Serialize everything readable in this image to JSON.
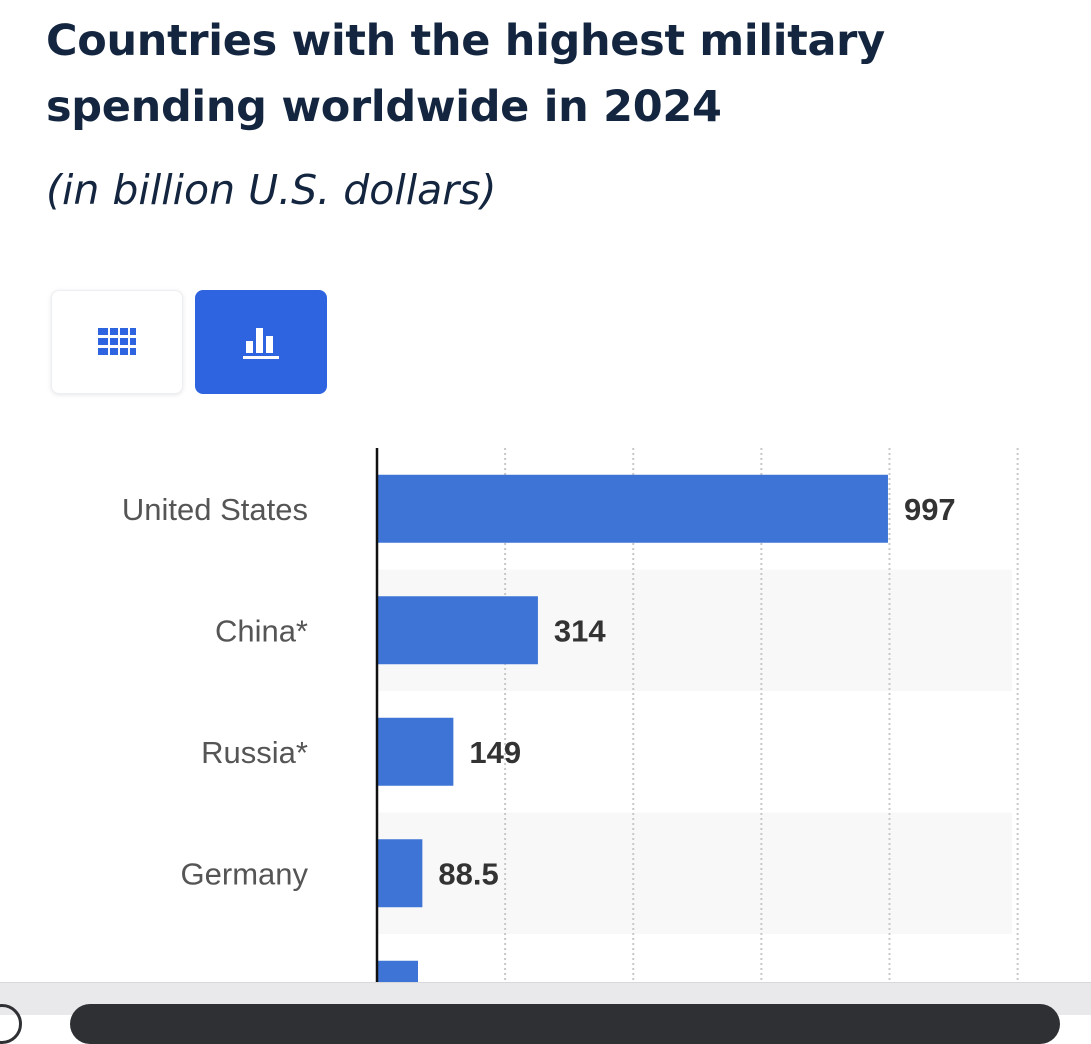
{
  "header": {
    "title": "Countries with the highest military spending worldwide in 2024",
    "subtitle": "(in billion U.S. dollars)"
  },
  "view_toggle": {
    "table_icon": "table-grid-icon",
    "chart_icon": "bar-chart-icon",
    "selected": "chart"
  },
  "colors": {
    "bar": "#3d74d6",
    "accent": "#2f64e0",
    "title": "#13253f",
    "label": "#555555",
    "value": "#333333"
  },
  "chart_data": {
    "type": "bar",
    "orientation": "horizontal",
    "title": "Countries with the highest military spending worldwide in 2024",
    "subtitle": "(in billion U.S. dollars)",
    "xlabel": "",
    "ylabel": "",
    "xlim": [
      0,
      1250
    ],
    "grid": true,
    "categories": [
      "United States",
      "China*",
      "Russia*",
      "Germany",
      ""
    ],
    "values": [
      997,
      314,
      149,
      88.5,
      80.0
    ],
    "value_labels": [
      "997",
      "314",
      "149",
      "88.5",
      ""
    ]
  }
}
